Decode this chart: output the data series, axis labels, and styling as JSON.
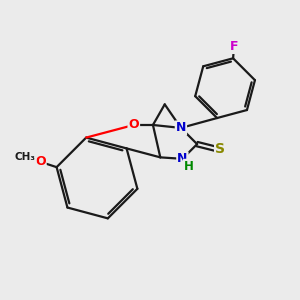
{
  "bg_color": "#ebebeb",
  "atom_colors": {
    "O": "#ff0000",
    "N": "#0000cd",
    "S": "#888800",
    "F": "#cc00cc",
    "C": "#1a1a1a",
    "H": "#008800"
  },
  "bond_color": "#1a1a1a",
  "bond_width": 1.6
}
